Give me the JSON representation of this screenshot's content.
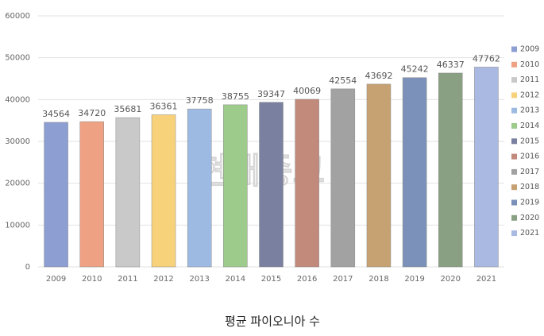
{
  "chart_data": {
    "type": "bar",
    "title": "평균 파이오니아 수",
    "watermark": "현대종교",
    "categories": [
      "2009",
      "2010",
      "2011",
      "2012",
      "2013",
      "2014",
      "2015",
      "2016",
      "2017",
      "2018",
      "2019",
      "2020",
      "2021"
    ],
    "values": [
      34564,
      34720,
      35681,
      36361,
      37758,
      38755,
      39347,
      40069,
      42554,
      43692,
      45242,
      46337,
      47762
    ],
    "colors": [
      "#8d9fd2",
      "#efa283",
      "#c9c9c9",
      "#f8d17b",
      "#9dbbe2",
      "#9ccb8b",
      "#7a809f",
      "#c28a7b",
      "#a2a2a2",
      "#c6a172",
      "#7b91b9",
      "#8aa083",
      "#a9b9e2"
    ],
    "ylim": [
      0,
      60000
    ],
    "yticks": [
      0,
      10000,
      20000,
      30000,
      40000,
      50000,
      60000
    ],
    "grid": true,
    "legend": "right"
  }
}
